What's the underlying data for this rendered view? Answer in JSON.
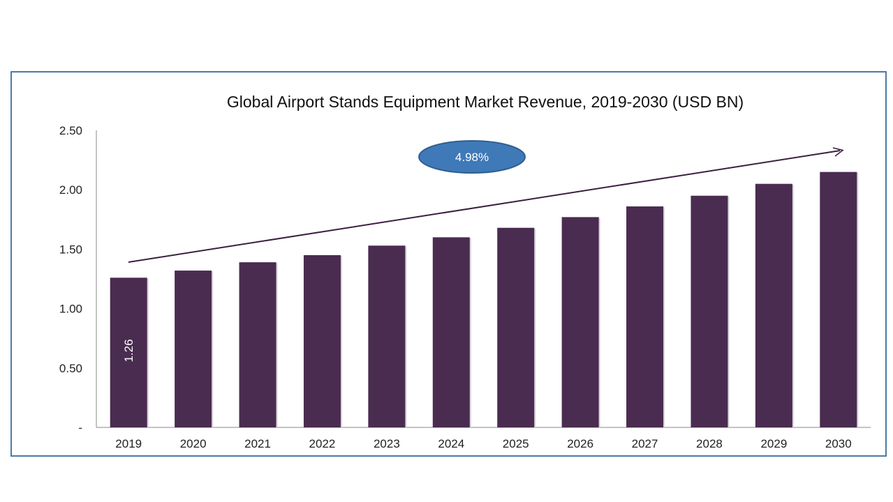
{
  "chart_data": {
    "type": "bar",
    "title": "Global Airport Stands Equipment Market Revenue, 2019-2030 (USD BN)",
    "xlabel": "",
    "ylabel": "",
    "categories": [
      "2019",
      "2020",
      "2021",
      "2022",
      "2023",
      "2024",
      "2025",
      "2026",
      "2027",
      "2028",
      "2029",
      "2030"
    ],
    "values": [
      1.26,
      1.32,
      1.39,
      1.45,
      1.53,
      1.6,
      1.68,
      1.77,
      1.86,
      1.95,
      2.05,
      2.15
    ],
    "ylim": [
      0,
      2.5
    ],
    "yticks": [
      "-",
      "0.50",
      "1.00",
      "1.50",
      "2.00",
      "2.50"
    ],
    "data_labels": [
      {
        "index": 0,
        "text": "1.26"
      }
    ],
    "annotation": {
      "text": "4.98%",
      "type": "growth-arrow-callout"
    },
    "bar_color": "#4a2c50",
    "callout_color": "#3f79b8",
    "frame_color": "#4a7ba7",
    "grid": false,
    "legend": "none"
  }
}
